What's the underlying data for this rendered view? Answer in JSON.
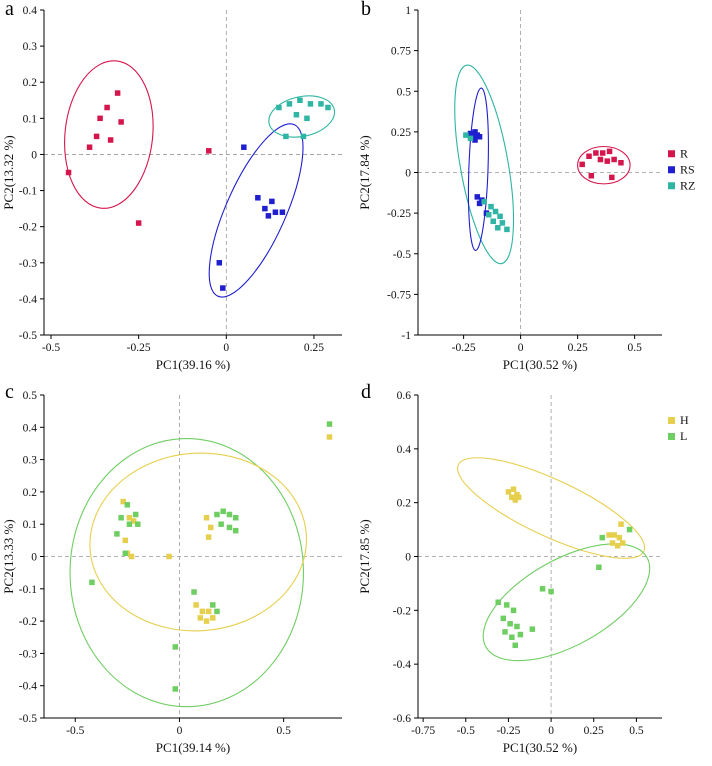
{
  "figure": {
    "description": "PCA score plots, four panels",
    "panel_labels": [
      "a",
      "b",
      "c",
      "d"
    ]
  },
  "chart_data": [
    {
      "type": "scatter",
      "panel_label": "a",
      "xlabel": "PC1(39.16 %)",
      "ylabel": "PC2(13.32 %)",
      "xlim": [
        -0.52,
        0.33
      ],
      "ylim": [
        -0.5,
        0.4
      ],
      "xtick_vals": [
        -0.5,
        -0.25,
        0,
        0.25
      ],
      "xtick_labels": [
        "-0.5",
        "-0.25",
        "0",
        "0.25"
      ],
      "ytick_vals": [
        0.4,
        0.3,
        0.2,
        0.1,
        0,
        -0.1,
        -0.2,
        -0.3,
        -0.4,
        -0.5
      ],
      "ytick_labels": [
        "0.4",
        "0.3",
        "0.2",
        "0.1",
        "0",
        "-0.1",
        "-0.2",
        "-0.3",
        "-0.4",
        "-0.5"
      ],
      "zero_lines": true,
      "legend": null,
      "series": [
        {
          "name": "R",
          "color": "#d5164c",
          "points": [
            [
              -0.31,
              0.17
            ],
            [
              -0.34,
              0.13
            ],
            [
              -0.36,
              0.1
            ],
            [
              -0.3,
              0.09
            ],
            [
              -0.37,
              0.05
            ],
            [
              -0.33,
              0.04
            ],
            [
              -0.39,
              0.02
            ],
            [
              -0.45,
              -0.05
            ],
            [
              -0.25,
              -0.19
            ],
            [
              -0.05,
              0.01
            ]
          ]
        },
        {
          "name": "RS",
          "color": "#1f1fd0",
          "points": [
            [
              0.05,
              0.02
            ],
            [
              0.09,
              -0.12
            ],
            [
              0.13,
              -0.13
            ],
            [
              0.11,
              -0.15
            ],
            [
              0.14,
              -0.16
            ],
            [
              0.16,
              -0.16
            ],
            [
              0.12,
              -0.17
            ],
            [
              -0.02,
              -0.3
            ],
            [
              -0.01,
              -0.37
            ]
          ]
        },
        {
          "name": "RZ",
          "color": "#2eb5a3",
          "points": [
            [
              0.15,
              0.13
            ],
            [
              0.18,
              0.14
            ],
            [
              0.21,
              0.15
            ],
            [
              0.24,
              0.14
            ],
            [
              0.27,
              0.14
            ],
            [
              0.29,
              0.13
            ],
            [
              0.2,
              0.11
            ],
            [
              0.23,
              0.1
            ],
            [
              0.17,
              0.05
            ],
            [
              0.22,
              0.05
            ]
          ]
        }
      ],
      "ellipses": [
        {
          "series": "R",
          "color": "#d5164c",
          "cx": -0.335,
          "cy": 0.055,
          "rx": 0.125,
          "ry": 0.205,
          "rot": 6
        },
        {
          "series": "RS",
          "color": "#1f1fd0",
          "cx": 0.085,
          "cy": -0.155,
          "rx": 0.085,
          "ry": 0.26,
          "rot": 24
        },
        {
          "series": "RZ",
          "color": "#2eb5a3",
          "cx": 0.215,
          "cy": 0.105,
          "rx": 0.095,
          "ry": 0.055,
          "rot": -12
        }
      ]
    },
    {
      "type": "scatter",
      "panel_label": "b",
      "xlabel": "PC1(30.52 %)",
      "ylabel": "PC2(17.84 %)",
      "xlim": [
        -0.45,
        0.62
      ],
      "ylim": [
        -1,
        1
      ],
      "xtick_vals": [
        -0.25,
        0,
        0.25,
        0.5
      ],
      "xtick_labels": [
        "-0.25",
        "0",
        "0.25",
        "0.5"
      ],
      "ytick_vals": [
        1,
        0.75,
        0.5,
        0.25,
        0,
        -0.25,
        -0.5,
        -0.75,
        -1
      ],
      "ytick_labels": [
        "1",
        "0.75",
        "0.5",
        "0.25",
        "0",
        "-0.25",
        "-0.5",
        "-0.75",
        "-1"
      ],
      "zero_lines": true,
      "legend": {
        "position": "right-middle",
        "items": [
          "R",
          "RS",
          "RZ"
        ]
      },
      "series": [
        {
          "name": "R",
          "color": "#d5164c",
          "points": [
            [
              0.27,
              0.05
            ],
            [
              0.3,
              0.1
            ],
            [
              0.33,
              0.12
            ],
            [
              0.36,
              0.12
            ],
            [
              0.39,
              0.13
            ],
            [
              0.35,
              0.08
            ],
            [
              0.38,
              0.07
            ],
            [
              0.41,
              0.08
            ],
            [
              0.44,
              0.06
            ],
            [
              0.31,
              -0.02
            ],
            [
              0.4,
              -0.03
            ]
          ]
        },
        {
          "name": "RS",
          "color": "#1f1fd0",
          "points": [
            [
              -0.22,
              0.24
            ],
            [
              -0.2,
              0.25
            ],
            [
              -0.19,
              0.23
            ],
            [
              -0.21,
              0.22
            ],
            [
              -0.18,
              0.22
            ],
            [
              -0.2,
              0.2
            ],
            [
              -0.19,
              -0.15
            ],
            [
              -0.17,
              -0.17
            ],
            [
              -0.18,
              -0.19
            ],
            [
              -0.15,
              -0.25
            ]
          ]
        },
        {
          "name": "RZ",
          "color": "#2eb5a3",
          "points": [
            [
              -0.24,
              0.23
            ],
            [
              -0.22,
              0.21
            ],
            [
              -0.16,
              -0.18
            ],
            [
              -0.13,
              -0.21
            ],
            [
              -0.11,
              -0.24
            ],
            [
              -0.14,
              -0.26
            ],
            [
              -0.09,
              -0.27
            ],
            [
              -0.12,
              -0.3
            ],
            [
              -0.08,
              -0.31
            ],
            [
              -0.1,
              -0.34
            ],
            [
              -0.06,
              -0.35
            ]
          ]
        }
      ],
      "ellipses": [
        {
          "series": "RZ",
          "color": "#2eb5a3",
          "cx": -0.16,
          "cy": 0.05,
          "rx": 0.105,
          "ry": 0.62,
          "rot": -10
        },
        {
          "series": "RS",
          "color": "#1f1fd0",
          "cx": -0.185,
          "cy": 0.02,
          "rx": 0.042,
          "ry": 0.5,
          "rot": 2
        },
        {
          "series": "R",
          "color": "#d5164c",
          "cx": 0.365,
          "cy": 0.045,
          "rx": 0.115,
          "ry": 0.115,
          "rot": 0
        }
      ]
    },
    {
      "type": "scatter",
      "panel_label": "c",
      "xlabel": "PC1(39.14 %)",
      "ylabel": "PC2(13.33 %)",
      "xlim": [
        -0.65,
        0.78
      ],
      "ylim": [
        -0.5,
        0.5
      ],
      "xtick_vals": [
        -0.5,
        0,
        0.5
      ],
      "xtick_labels": [
        "-0.5",
        "0",
        "0.5"
      ],
      "ytick_vals": [
        0.5,
        0.4,
        0.3,
        0.2,
        0.1,
        0,
        -0.1,
        -0.2,
        -0.3,
        -0.4,
        -0.5
      ],
      "ytick_labels": [
        "0.5",
        "0.4",
        "0.3",
        "0.2",
        "0.1",
        "0",
        "-0.1",
        "-0.2",
        "-0.3",
        "-0.4",
        "-0.5"
      ],
      "zero_lines": true,
      "legend": null,
      "series": [
        {
          "name": "H",
          "color": "#e7cf4e",
          "points": [
            [
              -0.27,
              0.17
            ],
            [
              -0.24,
              0.12
            ],
            [
              -0.22,
              0.11
            ],
            [
              -0.26,
              0.05
            ],
            [
              -0.25,
              0.01
            ],
            [
              -0.23,
              0.0
            ],
            [
              -0.05,
              0.0
            ],
            [
              0.13,
              0.12
            ],
            [
              0.15,
              0.09
            ],
            [
              0.14,
              0.06
            ],
            [
              0.08,
              -0.15
            ],
            [
              0.11,
              -0.17
            ],
            [
              0.14,
              -0.17
            ],
            [
              0.1,
              -0.19
            ],
            [
              0.13,
              -0.2
            ],
            [
              0.16,
              -0.19
            ],
            [
              0.72,
              0.37
            ]
          ]
        },
        {
          "name": "L",
          "color": "#6fce62",
          "points": [
            [
              -0.25,
              0.16
            ],
            [
              -0.21,
              0.13
            ],
            [
              -0.28,
              0.12
            ],
            [
              -0.24,
              0.1
            ],
            [
              -0.2,
              0.1
            ],
            [
              -0.3,
              0.07
            ],
            [
              -0.26,
              0.01
            ],
            [
              -0.42,
              -0.08
            ],
            [
              0.18,
              0.13
            ],
            [
              0.21,
              0.14
            ],
            [
              0.24,
              0.13
            ],
            [
              0.27,
              0.12
            ],
            [
              0.2,
              0.1
            ],
            [
              0.24,
              0.09
            ],
            [
              0.27,
              0.08
            ],
            [
              0.07,
              -0.11
            ],
            [
              0.16,
              -0.15
            ],
            [
              0.18,
              -0.17
            ],
            [
              -0.02,
              -0.28
            ],
            [
              -0.02,
              -0.41
            ],
            [
              0.72,
              0.41
            ]
          ]
        }
      ],
      "ellipses": [
        {
          "series": "L",
          "color": "#6fce62",
          "cx": 0.035,
          "cy": -0.05,
          "rx": 0.56,
          "ry": 0.415,
          "rot": 0
        },
        {
          "series": "H",
          "color": "#e7cf4e",
          "cx": 0.09,
          "cy": 0.045,
          "rx": 0.52,
          "ry": 0.275,
          "rot": -4
        }
      ]
    },
    {
      "type": "scatter",
      "panel_label": "d",
      "xlabel": "PC1(30.52 %)",
      "ylabel": "PC2(17.85 %)",
      "xlim": [
        -0.78,
        0.65
      ],
      "ylim": [
        -0.6,
        0.6
      ],
      "xtick_vals": [
        -0.75,
        -0.5,
        -0.25,
        0,
        0.25,
        0.5
      ],
      "xtick_labels": [
        "-0.75",
        "-0.5",
        "-0.25",
        "0",
        "0.25",
        "0.5"
      ],
      "ytick_vals": [
        0.6,
        0.4,
        0.2,
        0,
        -0.2,
        -0.4,
        -0.6
      ],
      "ytick_labels": [
        "0.6",
        "0.4",
        "0.2",
        "0",
        "-0.2",
        "-0.4",
        "-0.6"
      ],
      "zero_lines": true,
      "legend": {
        "position": "right-top",
        "items": [
          "H",
          "L"
        ]
      },
      "series": [
        {
          "name": "H",
          "color": "#e7cf4e",
          "points": [
            [
              -0.25,
              0.24
            ],
            [
              -0.22,
              0.25
            ],
            [
              -0.2,
              0.23
            ],
            [
              -0.23,
              0.22
            ],
            [
              -0.21,
              0.21
            ],
            [
              -0.19,
              0.22
            ],
            [
              0.34,
              0.08
            ],
            [
              0.37,
              0.08
            ],
            [
              0.4,
              0.07
            ],
            [
              0.36,
              0.05
            ],
            [
              0.39,
              0.04
            ],
            [
              0.42,
              0.05
            ],
            [
              0.41,
              0.12
            ]
          ]
        },
        {
          "name": "L",
          "color": "#6fce62",
          "points": [
            [
              0.3,
              0.07
            ],
            [
              0.46,
              0.1
            ],
            [
              0.28,
              -0.04
            ],
            [
              -0.05,
              -0.12
            ],
            [
              0.0,
              -0.13
            ],
            [
              -0.31,
              -0.17
            ],
            [
              -0.26,
              -0.18
            ],
            [
              -0.22,
              -0.2
            ],
            [
              -0.28,
              -0.23
            ],
            [
              -0.24,
              -0.25
            ],
            [
              -0.2,
              -0.26
            ],
            [
              -0.27,
              -0.28
            ],
            [
              -0.23,
              -0.3
            ],
            [
              -0.18,
              -0.29
            ],
            [
              -0.21,
              -0.33
            ],
            [
              -0.11,
              -0.27
            ]
          ]
        }
      ],
      "ellipses": [
        {
          "series": "H",
          "color": "#e7cf4e",
          "cx": 0.0,
          "cy": 0.18,
          "rx": 0.6,
          "ry": 0.105,
          "rot": 25
        },
        {
          "series": "L",
          "color": "#6fce62",
          "cx": 0.09,
          "cy": -0.17,
          "rx": 0.54,
          "ry": 0.16,
          "rot": -29
        }
      ]
    }
  ]
}
